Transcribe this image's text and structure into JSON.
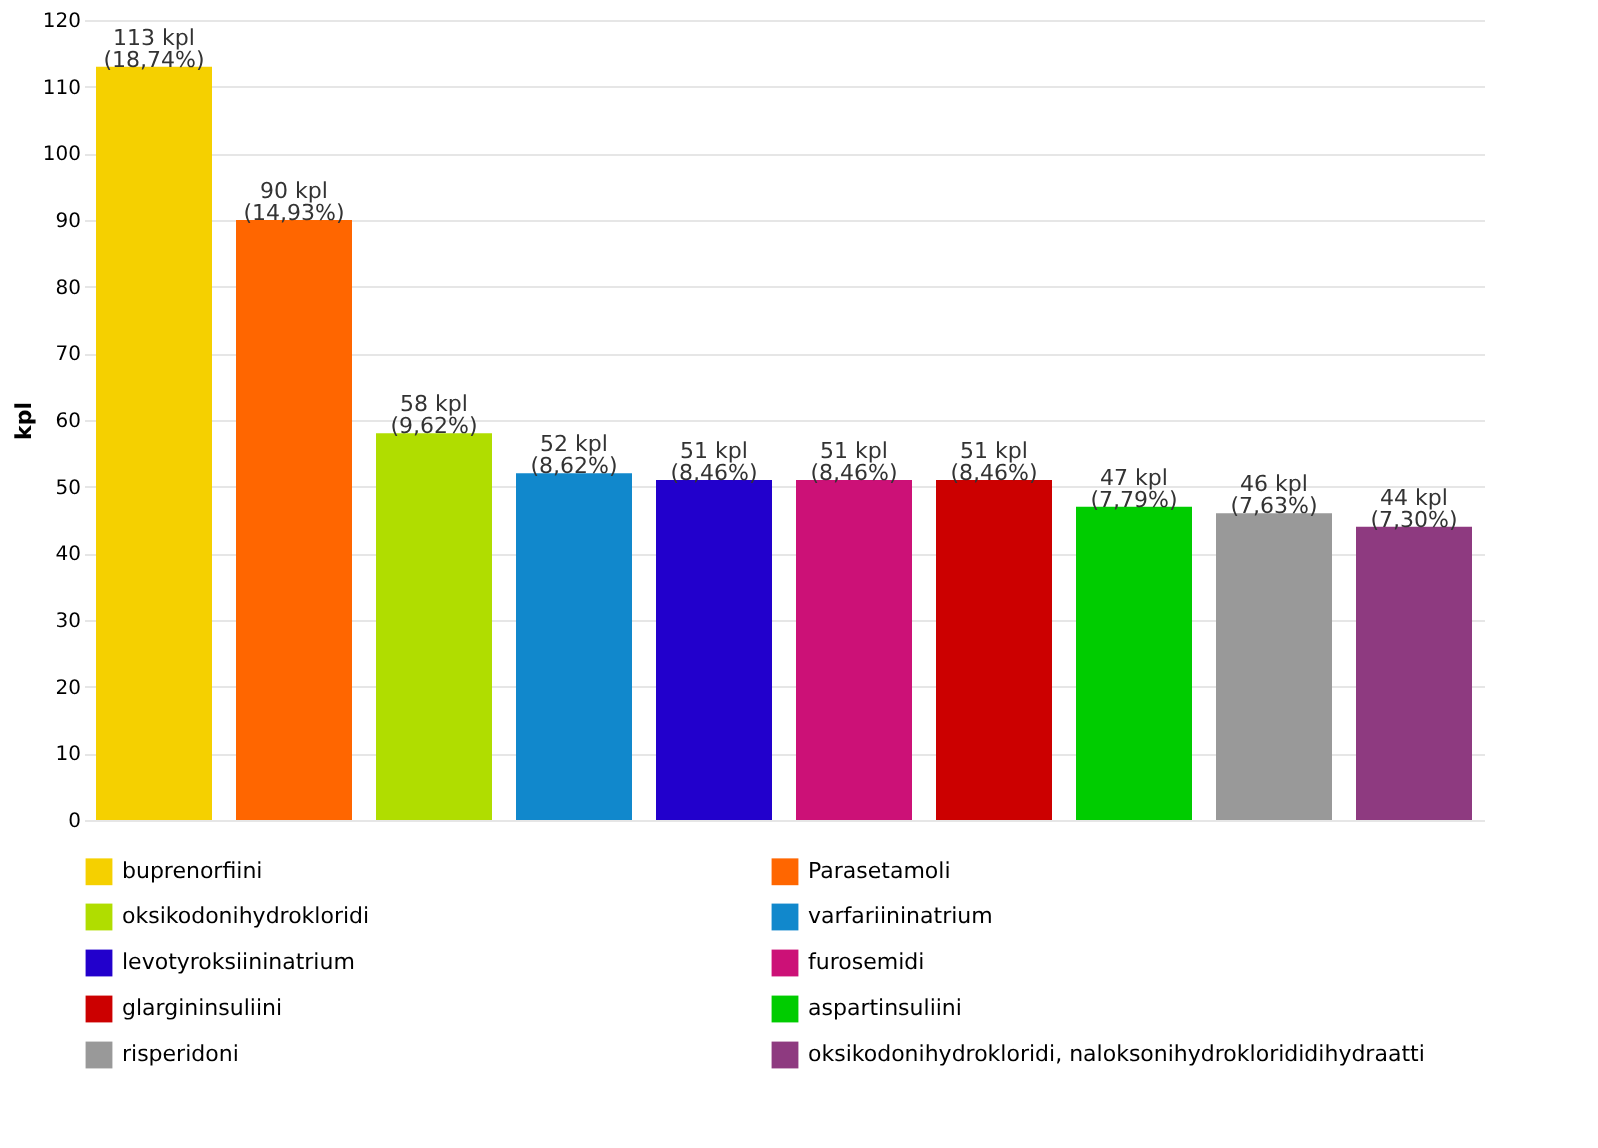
{
  "chart_data": {
    "type": "bar",
    "ylabel": "kpl",
    "categories": [
      null,
      null,
      null,
      null,
      null,
      null,
      null,
      null,
      null,
      null
    ],
    "series": [
      {
        "name": "buprenorfiini",
        "color": "#f5d000",
        "values": [
          113,
          null,
          null,
          null,
          null,
          null,
          null,
          null,
          null,
          null
        ],
        "value_labels": [
          "113 kpl\n(18,74%)",
          null,
          null,
          null,
          null,
          null,
          null,
          null,
          null,
          null
        ]
      },
      {
        "name": "Parasetamoli",
        "color": "#ff6600",
        "values": [
          null,
          90,
          null,
          null,
          null,
          null,
          null,
          null,
          null,
          null
        ],
        "value_labels": [
          null,
          "90 kpl\n(14,93%)",
          null,
          null,
          null,
          null,
          null,
          null,
          null,
          null
        ]
      },
      {
        "name": "oksikodonihydrokloridi",
        "color": "#b0dd00",
        "values": [
          null,
          null,
          58,
          null,
          null,
          null,
          null,
          null,
          null,
          null
        ],
        "value_labels": [
          null,
          null,
          "58 kpl\n(9,62%)",
          null,
          null,
          null,
          null,
          null,
          null,
          null
        ]
      },
      {
        "name": "varfariininatrium",
        "color": "#1188cc",
        "values": [
          null,
          null,
          null,
          52,
          null,
          null,
          null,
          null,
          null,
          null
        ],
        "value_labels": [
          null,
          null,
          null,
          "52 kpl\n(8,62%)",
          null,
          null,
          null,
          null,
          null,
          null
        ]
      },
      {
        "name": "levotyroksiininatrium",
        "color": "#2200cc",
        "values": [
          null,
          null,
          null,
          null,
          51,
          null,
          null,
          null,
          null,
          null
        ],
        "value_labels": [
          null,
          null,
          null,
          null,
          "51 kpl\n(8,46%)",
          null,
          null,
          null,
          null,
          null
        ]
      },
      {
        "name": "furosemidi",
        "color": "#cc1177",
        "values": [
          null,
          null,
          null,
          null,
          null,
          51,
          null,
          null,
          null,
          null
        ],
        "value_labels": [
          null,
          null,
          null,
          null,
          null,
          "51 kpl\n(8,46%)",
          null,
          null,
          null,
          null
        ]
      },
      {
        "name": "glargininsuliini",
        "color": "#cc0000",
        "values": [
          null,
          null,
          null,
          null,
          null,
          null,
          51,
          null,
          null,
          null
        ],
        "value_labels": [
          null,
          null,
          null,
          null,
          null,
          null,
          "51 kpl\n(8,46%)",
          null,
          null,
          null
        ]
      },
      {
        "name": "aspartinsuliini",
        "color": "#00cc00",
        "values": [
          null,
          null,
          null,
          null,
          null,
          null,
          null,
          47,
          null,
          null
        ],
        "value_labels": [
          null,
          null,
          null,
          null,
          null,
          null,
          null,
          "47 kpl\n(7,79%)",
          null,
          null
        ]
      },
      {
        "name": "risperidoni",
        "color": "#999999",
        "values": [
          null,
          null,
          null,
          null,
          null,
          null,
          null,
          null,
          46,
          null
        ],
        "value_labels": [
          null,
          null,
          null,
          null,
          null,
          null,
          null,
          null,
          "46 kpl\n(7,63%)",
          null
        ]
      },
      {
        "name": "oksikodonihydrokloridi, naloksonihydroklorididihydraatti",
        "color": "#8e3a80",
        "values": [
          null,
          null,
          null,
          null,
          null,
          null,
          null,
          null,
          null,
          44
        ],
        "value_labels": [
          null,
          null,
          null,
          null,
          null,
          null,
          null,
          null,
          null,
          "44 kpl\n(7,30%)"
        ]
      }
    ],
    "ylim": [
      0,
      120
    ],
    "yticks": [
      0,
      10,
      20,
      30,
      40,
      50,
      60,
      70,
      80,
      90,
      100,
      110,
      120
    ],
    "grid": "y",
    "legend": "bottom",
    "tick_labels": "y"
  }
}
